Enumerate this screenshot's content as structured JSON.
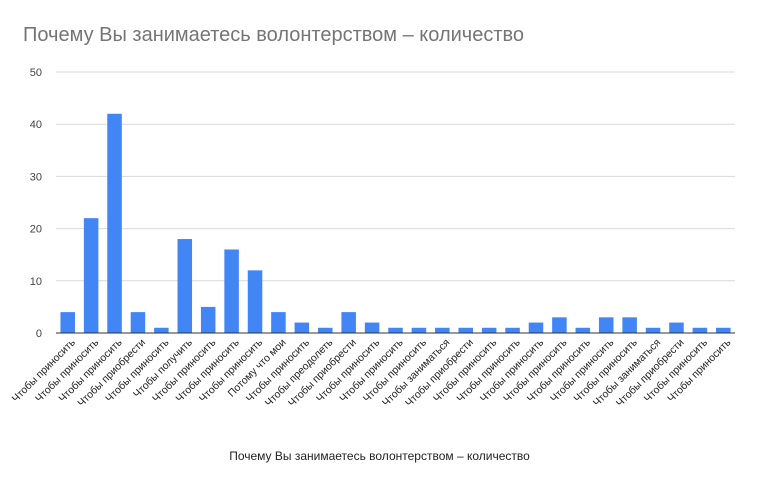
{
  "chart_data": {
    "type": "bar",
    "title": "Почему Вы занимаетесь волонтерством – количество",
    "xlabel": "Почему Вы занимаетесь волонтерством – количество",
    "ylabel": "",
    "ylim": [
      0,
      50
    ],
    "yticks": [
      "0",
      "10",
      "20",
      "30",
      "40",
      "50"
    ],
    "grid": true,
    "legend": "none",
    "bar_color": "#4285f4",
    "categories": [
      "Чтобы приносить",
      "Чтобы приносить",
      "Чтобы приносить",
      "Чтобы приобрести",
      "Чтобы приносить",
      "Чтобы получить",
      "Чтобы приносить",
      "Чтобы приносить",
      "Чтобы приносить",
      "Потому что мои",
      "Чтобы приносить",
      "Чтобы преодолеть",
      "Чтобы приобрести",
      "Чтобы приносить",
      "Чтобы приносить",
      "Чтобы приносить",
      "Чтобы заниматься",
      "Чтобы приобрести",
      "Чтобы приносить",
      "Чтобы приносить",
      "Чтобы приносить",
      "Чтобы приносить",
      "Чтобы приносить",
      "Чтобы приносить",
      "Чтобы приносить",
      "Чтобы заниматься",
      "Чтобы приобрести",
      "Чтобы приносить",
      "Чтобы приносить"
    ],
    "values": [
      4,
      22,
      42,
      4,
      1,
      18,
      5,
      16,
      12,
      4,
      2,
      1,
      4,
      2,
      1,
      1,
      1,
      1,
      1,
      1,
      2,
      3,
      1,
      3,
      3,
      1,
      2,
      1,
      1
    ]
  }
}
